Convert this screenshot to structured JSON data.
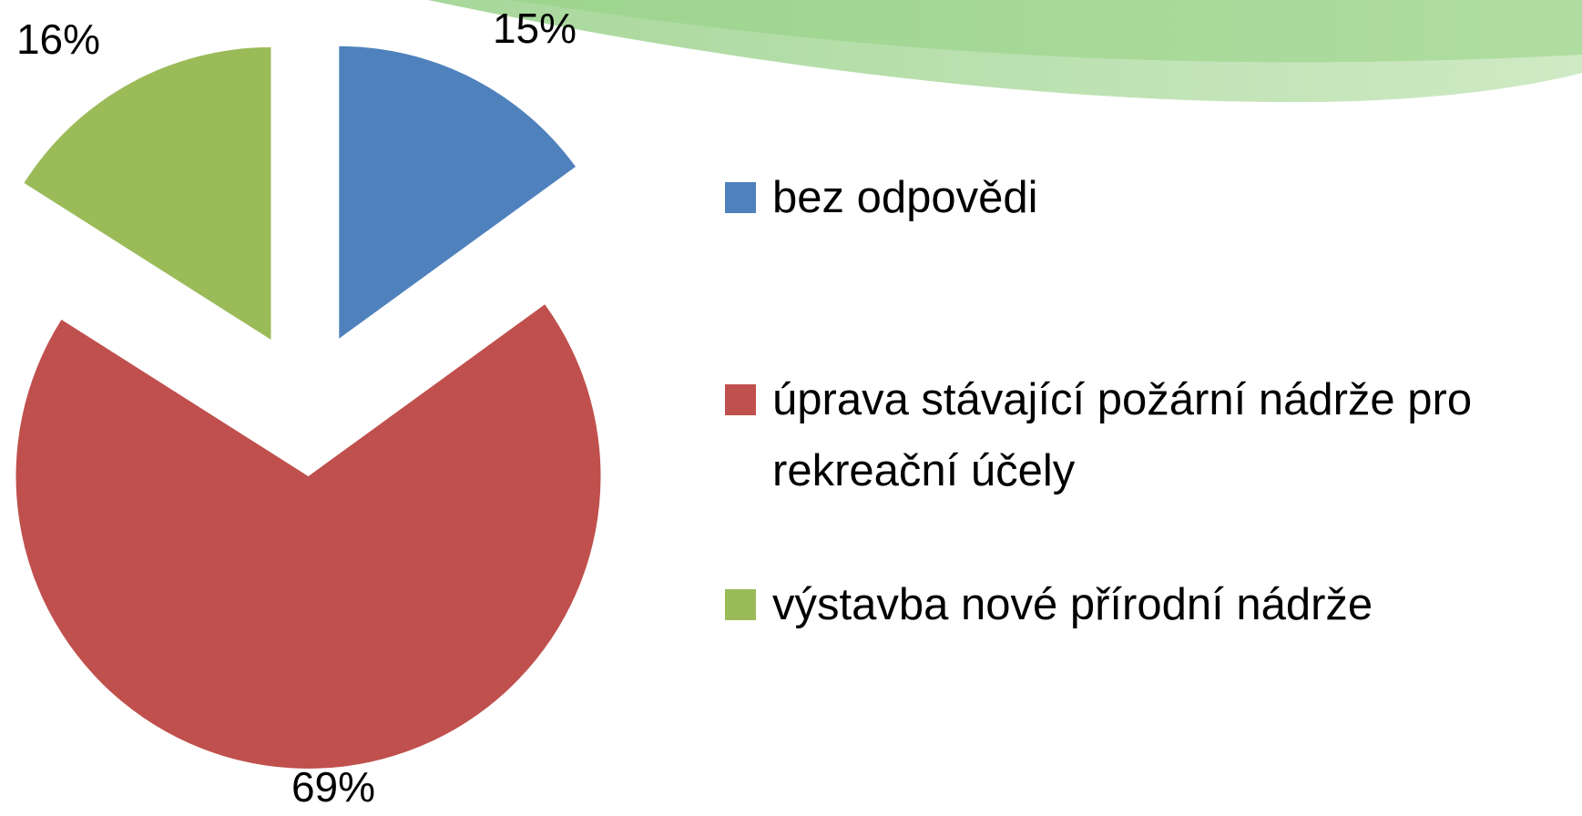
{
  "chart_data": {
    "type": "pie",
    "categories": [
      "bez odpovědi",
      "úprava stávající požární nádrže pro rekreační účely",
      "výstavba nové přírodní nádrže"
    ],
    "values": [
      15,
      69,
      16
    ],
    "value_labels": [
      "15%",
      "69%",
      "16%"
    ],
    "colors": [
      "#4f81bd",
      "#c0504d",
      "#9bbb59"
    ],
    "legend": "right"
  }
}
